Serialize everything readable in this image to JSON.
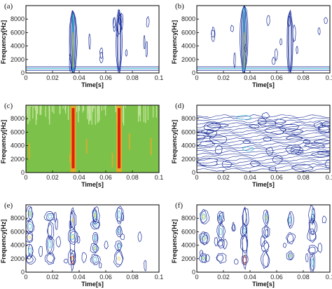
{
  "chart_data": [
    {
      "panel_label": "(a)",
      "type": "heatmap",
      "style": "contour-sparse",
      "xlabel": "Time[s]",
      "ylabel": "Frequency[Hz]",
      "xlim": [
        0,
        0.1
      ],
      "ylim": [
        0,
        10000
      ],
      "xticks": [
        "0",
        "0.02",
        "0.04",
        "0.06",
        "0.08",
        "0.1"
      ],
      "yticks": [
        "0",
        "2000",
        "4000",
        "6000",
        "8000"
      ],
      "ridges": [
        0.0355,
        0.07
      ],
      "baseline_band": true
    },
    {
      "panel_label": "(b)",
      "type": "heatmap",
      "style": "contour-sparse",
      "xlabel": "Time[s]",
      "ylabel": "Frequency[Hz]",
      "xlim": [
        0,
        0.1
      ],
      "ylim": [
        0,
        10000
      ],
      "xticks": [
        "0",
        "0.02",
        "0.04",
        "0.06",
        "0.08",
        "0.1"
      ],
      "yticks": [
        "0",
        "2000",
        "4000",
        "6000",
        "8000"
      ],
      "ridges": [
        0.0355,
        0.07
      ],
      "baseline_band": true
    },
    {
      "panel_label": "(c)",
      "type": "heatmap",
      "style": "filled",
      "xlabel": "Time[s]",
      "ylabel": "Frequency[Hz]",
      "xlim": [
        0,
        0.1
      ],
      "ylim": [
        0,
        10000
      ],
      "xticks": [
        "0",
        "0.02",
        "0.04",
        "0.06",
        "0.08",
        "0.1"
      ],
      "yticks": [
        "0",
        "2000",
        "4000",
        "6000",
        "8000"
      ],
      "ridges": [
        0.0355,
        0.07
      ],
      "colors": {
        "background": "#7cc24a",
        "top": "#c8e6a0",
        "hot": "#e02010",
        "warm": "#f5a623"
      }
    },
    {
      "panel_label": "(d)",
      "type": "heatmap",
      "style": "contour-dense",
      "xlabel": "Time[s]",
      "ylabel": "Frequency[Hz]",
      "xlim": [
        0,
        0.1
      ],
      "ylim": [
        0,
        10000
      ],
      "xticks": [
        "0",
        "0.02",
        "0.04",
        "0.06",
        "0.08",
        "0.1"
      ],
      "yticks": [
        "0",
        "2000",
        "4000",
        "6000",
        "8000"
      ],
      "ridges": [
        0.0355
      ]
    },
    {
      "panel_label": "(e)",
      "type": "heatmap",
      "style": "contour-blobs",
      "xlabel": "Time[s]",
      "ylabel": "Frequency[Hz]",
      "xlim": [
        0,
        0.1
      ],
      "ylim": [
        0,
        10000
      ],
      "xticks": [
        "0",
        "0.02",
        "0.04",
        "0.06",
        "0.08",
        "0.1"
      ],
      "yticks": [
        "0",
        "2000",
        "4000",
        "6000",
        "8000"
      ],
      "ridges": [
        0.003,
        0.018,
        0.035,
        0.052,
        0.07
      ]
    },
    {
      "panel_label": "(f)",
      "type": "heatmap",
      "style": "contour-blobs",
      "xlabel": "Time[s]",
      "ylabel": "Frequency[Hz]",
      "xlim": [
        0,
        0.1
      ],
      "ylim": [
        0,
        10000
      ],
      "xticks": [
        "0",
        "0.02",
        "0.04",
        "0.06",
        "0.08",
        "0.1"
      ],
      "yticks": [
        "0",
        "2000",
        "4000",
        "6000",
        "8000"
      ],
      "ridges": [
        0.005,
        0.018,
        0.036,
        0.052,
        0.07,
        0.087
      ]
    }
  ],
  "colors": {
    "contour_blue": "#1a2f9a",
    "contour_cyan": "#39b7d6",
    "contour_yellow": "#e6d22a",
    "contour_red": "#d8301c",
    "axis": "#000000"
  }
}
